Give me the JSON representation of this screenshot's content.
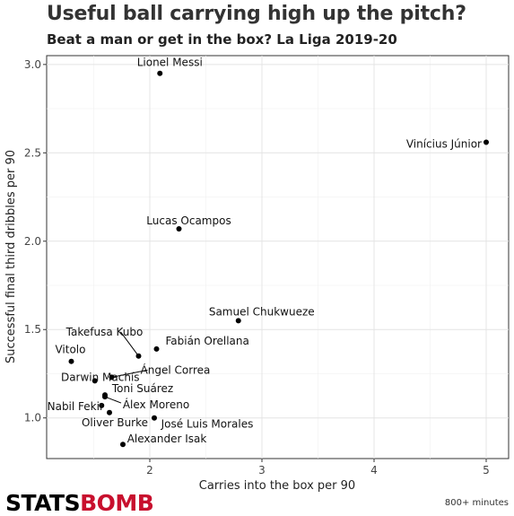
{
  "chart_data": {
    "type": "scatter",
    "title": "Useful ball carrying high up the pitch?",
    "subtitle": "Beat a man or get in the box? La Liga 2019-20",
    "xlabel": "Carries into the box per 90",
    "ylabel": "Successful final third dribbles per 90",
    "xlim": [
      1.08,
      5.2
    ],
    "ylim": [
      0.77,
      3.05
    ],
    "x_ticks": [
      2,
      3,
      4,
      5
    ],
    "y_ticks": [
      1.0,
      1.5,
      2.0,
      2.5,
      3.0
    ],
    "x_tick_labels": [
      "2",
      "3",
      "4",
      "5"
    ],
    "y_tick_labels": [
      "1.0",
      "1.5",
      "2.0",
      "2.5",
      "3.0"
    ],
    "grid": true,
    "points": [
      {
        "label": "Lionel Messi",
        "x": 2.09,
        "y": 2.95
      },
      {
        "label": "Vinícius Júnior",
        "x": 5.0,
        "y": 2.56
      },
      {
        "label": "Lucas Ocampos",
        "x": 2.26,
        "y": 2.07
      },
      {
        "label": "Samuel Chukwueze",
        "x": 2.79,
        "y": 1.55
      },
      {
        "label": "Fabián Orellana",
        "x": 2.06,
        "y": 1.39
      },
      {
        "label": "Takefusa Kubo",
        "x": 1.9,
        "y": 1.35
      },
      {
        "label": "Vitolo",
        "x": 1.3,
        "y": 1.32
      },
      {
        "label": "Ángel Correa",
        "x": 1.66,
        "y": 1.23
      },
      {
        "label": "Darwin Machís",
        "x": 1.51,
        "y": 1.21
      },
      {
        "label": "Toni Suárez",
        "x": 1.6,
        "y": 1.13
      },
      {
        "label": "Álex Moreno",
        "x": 1.6,
        "y": 1.12
      },
      {
        "label": "Nabil Fekir",
        "x": 1.57,
        "y": 1.07
      },
      {
        "label": "Oliver Burke",
        "x": 1.64,
        "y": 1.03
      },
      {
        "label": "José Luis Morales",
        "x": 2.04,
        "y": 1.0
      },
      {
        "label": "Alexander Isak",
        "x": 1.76,
        "y": 0.85
      }
    ]
  },
  "branding": {
    "logo_part1": "STATS",
    "logo_part2": "BOMB",
    "caption": "800+ minutes"
  }
}
